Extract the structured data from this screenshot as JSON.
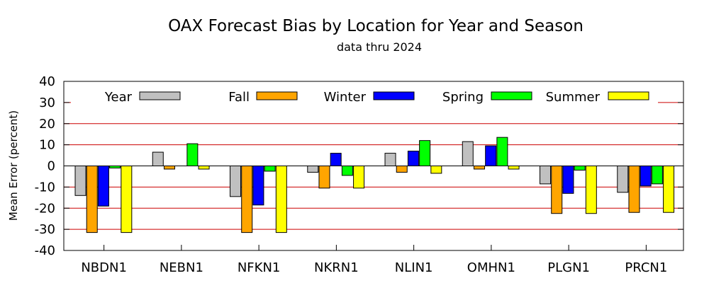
{
  "chart_data": {
    "type": "bar",
    "title": "OAX Forecast Bias by Location for Year and Season",
    "subtitle": "data thru 2024",
    "ylabel": "Mean Error (percent)",
    "xlabel": "",
    "ylim": [
      -40,
      40
    ],
    "yticks": [
      -40,
      -30,
      -20,
      -10,
      0,
      10,
      20,
      30,
      40
    ],
    "grid": true,
    "legend_position": "top",
    "categories": [
      "NBDN1",
      "NEBN1",
      "NFKN1",
      "NKRN1",
      "NLIN1",
      "OMHN1",
      "PLGN1",
      "PRCN1"
    ],
    "series": [
      {
        "name": "Year",
        "color": "#c0c0c0",
        "values": [
          -14,
          6.5,
          -14.5,
          -3,
          6,
          11.5,
          -8.5,
          -12.5
        ]
      },
      {
        "name": "Fall",
        "color": "#ffa500",
        "values": [
          -31.5,
          -1.5,
          -31.5,
          -10.5,
          -3,
          -1.5,
          -22.5,
          -22
        ]
      },
      {
        "name": "Winter",
        "color": "#0000ff",
        "values": [
          -19,
          0,
          -18.5,
          6,
          7,
          9.5,
          -13,
          -9.5
        ]
      },
      {
        "name": "Spring",
        "color": "#00ff00",
        "values": [
          -1,
          10.5,
          -2.5,
          -4.5,
          12,
          13.5,
          -2,
          -8.5
        ]
      },
      {
        "name": "Summer",
        "color": "#ffff00",
        "values": [
          -31.5,
          -1.5,
          -31.5,
          -10.5,
          -3.5,
          -1.5,
          -22.5,
          -22
        ]
      }
    ],
    "gridline_color": "#cc0000"
  }
}
